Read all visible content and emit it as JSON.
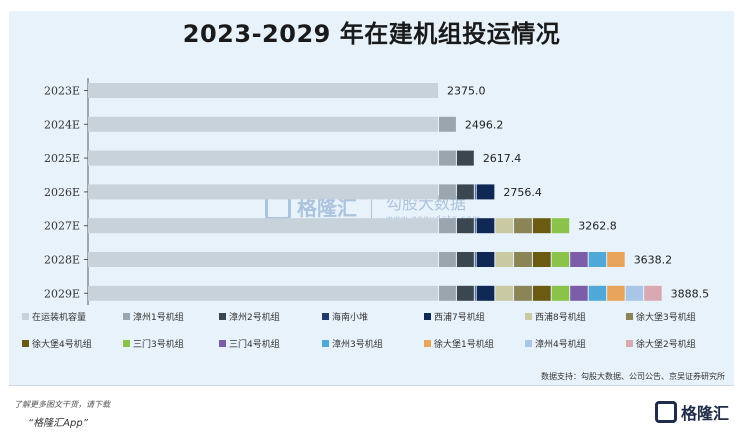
{
  "title": "2023-2029 年在建机组投运情况",
  "source": "数据支持：勾股大数据、公司公告、京吴证券研究所",
  "watermark": {
    "brand": "格隆汇",
    "sub": "勾股大数据",
    "domain": "www.gogudata.com"
  },
  "footer": {
    "note": "了解更多图文干货，请下载",
    "app": "“格隆汇App”",
    "logo_text": "格隆汇"
  },
  "chart_data": {
    "type": "bar",
    "stacked": true,
    "orientation": "horizontal",
    "categories": [
      "2023E",
      "2024E",
      "2025E",
      "2026E",
      "2027E",
      "2028E",
      "2029E"
    ],
    "totals": [
      2375.0,
      2496.2,
      2617.4,
      2756.4,
      3262.8,
      3638.2,
      3888.5
    ],
    "total_labels": [
      "2375.0",
      "2496.2",
      "2617.4",
      "2756.4",
      "3262.8",
      "3638.2",
      "3888.5"
    ],
    "series": [
      {
        "name": "在运装机容量",
        "color": "#c8d2da",
        "values": [
          2375.0,
          2375.0,
          2375.0,
          2375.0,
          2375.0,
          2375.0,
          2375.0
        ]
      },
      {
        "name": "漳州1号机组",
        "color": "#9aa5ae",
        "values": [
          0,
          121.2,
          121.2,
          121.2,
          121.2,
          121.2,
          121.2
        ]
      },
      {
        "name": "漳州2号机组",
        "color": "#3a4650",
        "values": [
          0,
          0,
          121.2,
          121.2,
          121.2,
          121.2,
          121.2
        ]
      },
      {
        "name": "海南小堆",
        "color": "#1f3a6b",
        "values": [
          0,
          0,
          0,
          12.5,
          12.5,
          12.5,
          12.5
        ]
      },
      {
        "name": "西浦7号机组",
        "color": "#0f2855",
        "values": [
          0,
          0,
          0,
          126.5,
          126.5,
          126.5,
          126.5
        ]
      },
      {
        "name": "西浦8号机组",
        "color": "#c9c9a4",
        "values": [
          0,
          0,
          0,
          0,
          126.5,
          126.5,
          126.5
        ]
      },
      {
        "name": "徐大堡3号机组",
        "color": "#8a8457",
        "values": [
          0,
          0,
          0,
          0,
          127.4,
          127.4,
          127.4
        ]
      },
      {
        "name": "徐大堡4号机组",
        "color": "#6b5a12",
        "values": [
          0,
          0,
          0,
          0,
          127.4,
          127.4,
          127.4
        ]
      },
      {
        "name": "三门3号机组",
        "color": "#8bc34a",
        "values": [
          0,
          0,
          0,
          0,
          125.1,
          125.1,
          125.1
        ]
      },
      {
        "name": "三门4号机组",
        "color": "#7b5ea7",
        "values": [
          0,
          0,
          0,
          0,
          0,
          125.1,
          125.1
        ]
      },
      {
        "name": "漳州3号机组",
        "color": "#4fa8d8",
        "values": [
          0,
          0,
          0,
          0,
          0,
          125.1,
          125.1
        ]
      },
      {
        "name": "徐大堡1号机组",
        "color": "#e8a45a",
        "values": [
          0,
          0,
          0,
          0,
          0,
          125.2,
          125.2
        ]
      },
      {
        "name": "漳州4号机组",
        "color": "#a9c6e8",
        "values": [
          0,
          0,
          0,
          0,
          0,
          0,
          125.2
        ]
      },
      {
        "name": "徐大堡2号机组",
        "color": "#d9a9b2",
        "values": [
          0,
          0,
          0,
          0,
          0,
          0,
          125.1
        ]
      }
    ],
    "grid": false,
    "legend_position": "bottom"
  }
}
